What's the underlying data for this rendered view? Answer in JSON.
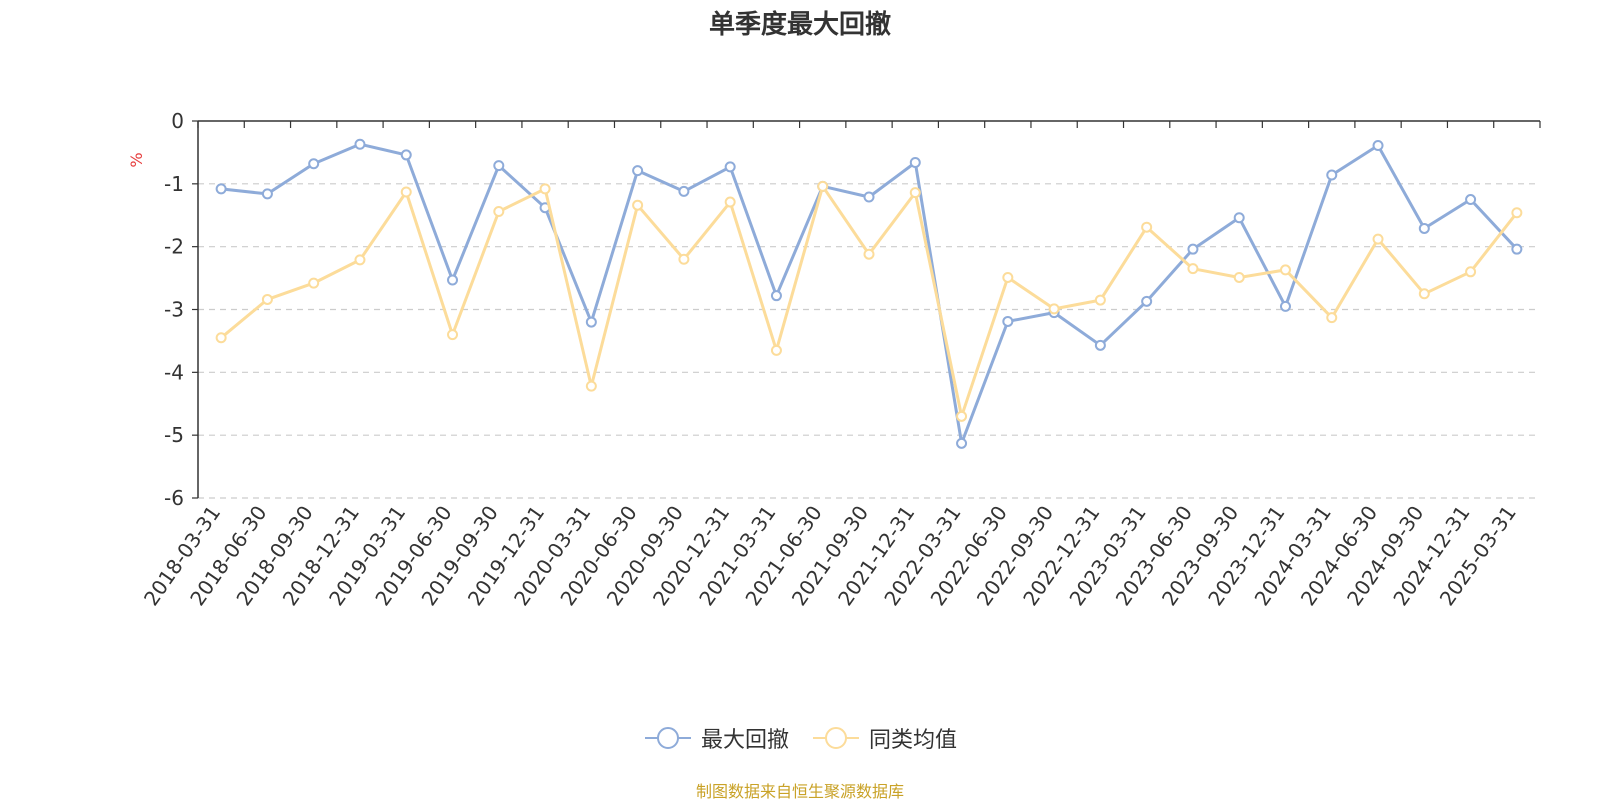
{
  "chart_data": {
    "type": "line",
    "title": "单季度最大回撤",
    "y_unit": "%",
    "ylim": [
      -6,
      0
    ],
    "y_ticks": [
      0,
      -1,
      -2,
      -3,
      -4,
      -5,
      -6
    ],
    "grid": "horizontal dashed",
    "legend_position": "bottom",
    "categories": [
      "2018-03-31",
      "2018-06-30",
      "2018-09-30",
      "2018-12-31",
      "2019-03-31",
      "2019-06-30",
      "2019-09-30",
      "2019-12-31",
      "2020-03-31",
      "2020-06-30",
      "2020-09-30",
      "2020-12-31",
      "2021-03-31",
      "2021-06-30",
      "2021-09-30",
      "2021-12-31",
      "2022-03-31",
      "2022-06-30",
      "2022-09-30",
      "2022-12-31",
      "2023-03-31",
      "2023-06-30",
      "2023-09-30",
      "2023-12-31",
      "2024-03-31",
      "2024-06-30",
      "2024-09-30",
      "2024-12-31",
      "2025-03-31"
    ],
    "series": [
      {
        "name": "最大回撤",
        "color": "#8eabd9",
        "values": [
          -1.08,
          -1.16,
          -0.68,
          -0.37,
          -0.54,
          -2.53,
          -0.71,
          -1.38,
          -3.2,
          -0.79,
          -1.12,
          -0.73,
          -2.78,
          -1.04,
          -1.21,
          -0.66,
          -5.13,
          -3.19,
          -3.05,
          -3.57,
          -2.87,
          -2.04,
          -1.54,
          -2.95,
          -0.86,
          -0.39,
          -1.71,
          -1.25,
          -2.04
        ]
      },
      {
        "name": "同类均值",
        "color": "#fcdc9a",
        "values": [
          -3.45,
          -2.84,
          -2.58,
          -2.21,
          -1.13,
          -3.4,
          -1.44,
          -1.08,
          -4.22,
          -1.34,
          -2.2,
          -1.29,
          -3.65,
          -1.04,
          -2.12,
          -1.14,
          -4.7,
          -2.49,
          -2.99,
          -2.85,
          -1.69,
          -2.35,
          -2.49,
          -2.37,
          -3.13,
          -1.88,
          -2.75,
          -2.4,
          -1.46
        ]
      }
    ]
  },
  "source_note": {
    "text": "制图数据来自恒生聚源数据库",
    "color": "#c9a227"
  },
  "axis_unit_color": "#e63b3b"
}
